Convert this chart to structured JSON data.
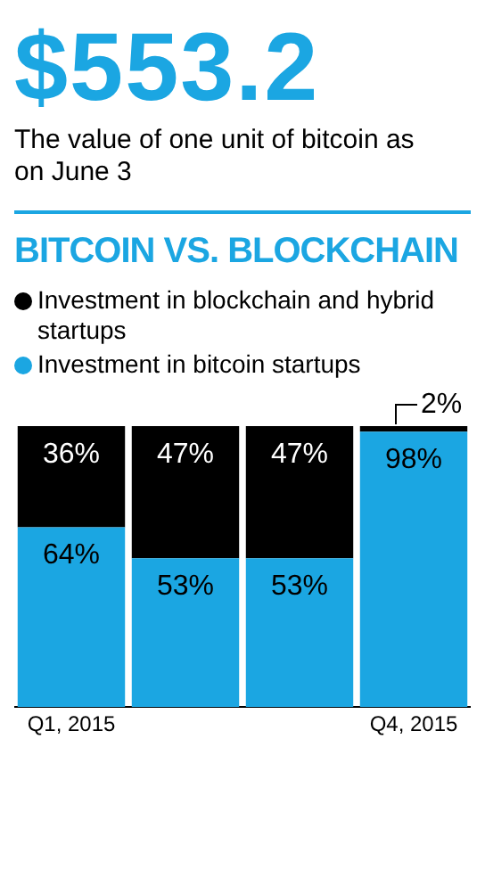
{
  "chart_data": {
    "type": "bar",
    "title": "BITCOIN VS. BLOCKCHAIN",
    "annotations": [
      "$553.2",
      "The value of one unit of bitcoin as on June 3"
    ],
    "categories": [
      "Q1, 2015",
      null,
      null,
      "Q4, 2015"
    ],
    "stacked": true,
    "legend": "top",
    "grid": false,
    "series": [
      {
        "name": "Investment in bitcoin startups",
        "color": "#1ba6e2",
        "values": [
          64,
          53,
          53,
          98
        ],
        "value_labels": [
          "64%",
          "53%",
          "53%",
          "98%"
        ]
      },
      {
        "name": "Investment in blockchain and hybrid startups",
        "color": "#000000",
        "values": [
          36,
          47,
          47,
          2
        ],
        "value_labels": [
          "36%",
          "47%",
          "47%",
          "2%"
        ]
      }
    ]
  }
}
